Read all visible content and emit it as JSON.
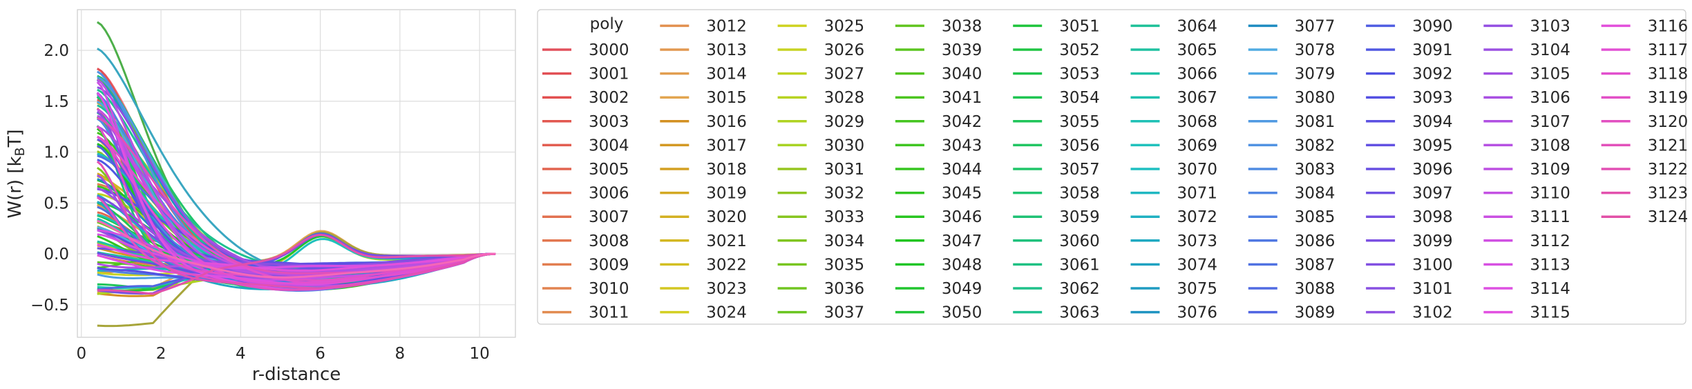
{
  "chart_data": {
    "type": "line",
    "title": "",
    "xlabel": "r-distance",
    "ylabel_main": "W(r) [k",
    "ylabel_sub": "B",
    "ylabel_end": "T]",
    "xlim": [
      -0.1,
      10.9
    ],
    "ylim": [
      -0.82,
      2.4
    ],
    "xticks": [
      0,
      2,
      4,
      6,
      8,
      10
    ],
    "xtick_labels": [
      "0",
      "2",
      "4",
      "6",
      "8",
      "10"
    ],
    "yticks": [
      -0.5,
      0.0,
      0.5,
      1.0,
      1.5,
      2.0
    ],
    "ytick_labels": [
      "−0.5",
      "0.0",
      "0.5",
      "1.0",
      "1.5",
      "2.0"
    ],
    "grid": true,
    "legend_title": "poly",
    "legend_placement": "outside-right",
    "series_start_id": 3000,
    "series_count": 125,
    "series_names": [],
    "r_range": [
      0.4,
      10.4
    ],
    "key_series": [
      {
        "name": "3000",
        "w_at_0_4": 1.85,
        "color": "#f0737f"
      },
      {
        "name": "3024",
        "w_at_0_4": -0.68,
        "color": "#a7a53a"
      },
      {
        "name": "3040",
        "w_at_0_4": 2.25,
        "color": "#4daf4a"
      },
      {
        "name": "3075",
        "w_at_0_4": 2.03,
        "color": "#3aa7c1"
      },
      {
        "name": "3124",
        "w_at_0_4": 0.35,
        "color": "#f567b8"
      }
    ]
  }
}
